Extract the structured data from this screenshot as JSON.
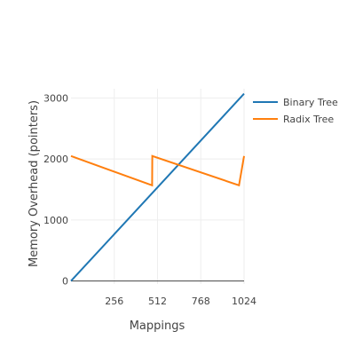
{
  "chart_data": {
    "type": "line",
    "title": "",
    "xlabel": "Mappings",
    "ylabel": "Memory Overhead (pointers)",
    "xlim": [
      0,
      1024
    ],
    "ylim": [
      -50,
      3150
    ],
    "x_ticks": [
      256,
      512,
      768,
      1024
    ],
    "y_ticks": [
      0,
      1000,
      2000,
      3000
    ],
    "grid": true,
    "legend_position": "top-right",
    "series": [
      {
        "name": "Binary Tree",
        "color": "#1f77b4",
        "points": [
          [
            0,
            0
          ],
          [
            1024,
            3069
          ]
        ]
      },
      {
        "name": "Radix Tree",
        "color": "#ff7f0e",
        "points": [
          [
            0,
            2048
          ],
          [
            480,
            1568
          ],
          [
            481,
            2048
          ],
          [
            994,
            1568
          ],
          [
            1024,
            2048
          ]
        ]
      }
    ]
  }
}
